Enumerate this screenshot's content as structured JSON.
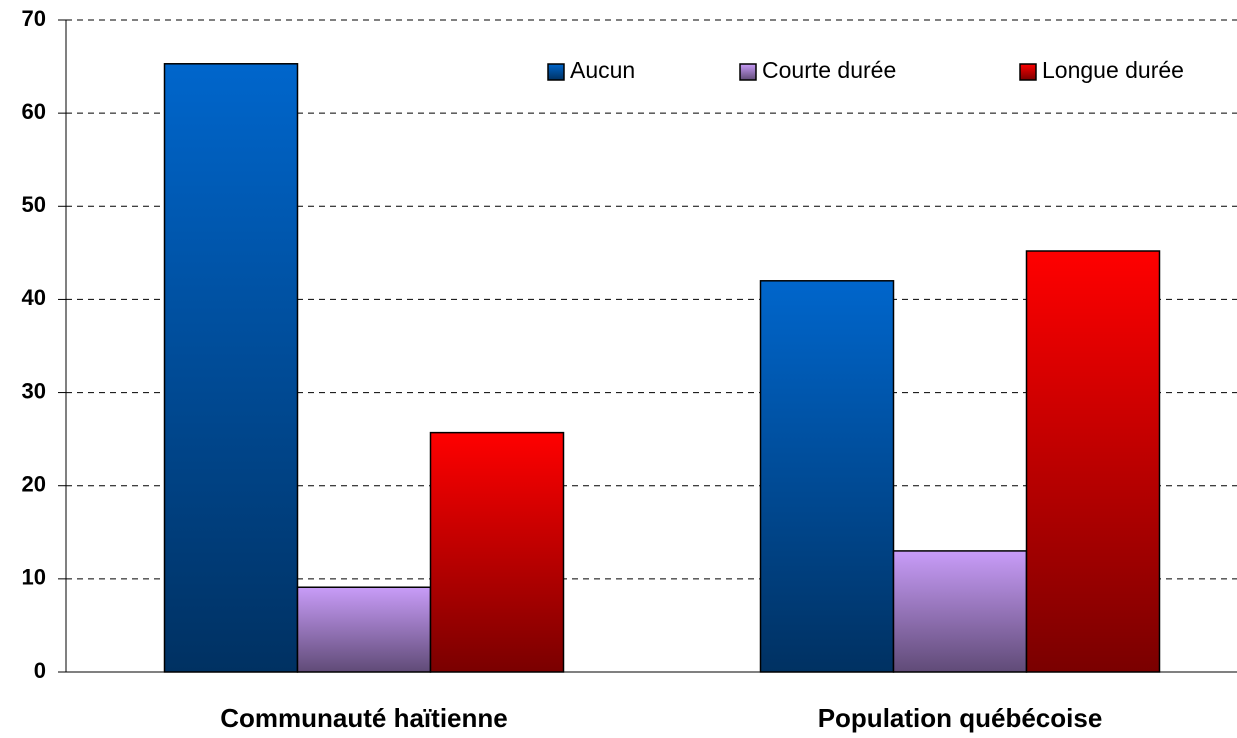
{
  "chart_data": {
    "type": "bar",
    "categories": [
      "Communauté haïtienne",
      "Population québécoise"
    ],
    "series": [
      {
        "name": "Aucun",
        "color": "#0066cc",
        "values": [
          65.3,
          42
        ]
      },
      {
        "name": "Courte durée",
        "color": "#c89cf8",
        "values": [
          9.1,
          13
        ]
      },
      {
        "name": "Longue durée",
        "color": "#ff0000",
        "values": [
          25.7,
          45.2
        ]
      }
    ],
    "ylim": [
      0,
      70
    ],
    "yticks": [
      0,
      10,
      20,
      30,
      40,
      50,
      60,
      70
    ],
    "grid": true,
    "legend": "top-right"
  }
}
